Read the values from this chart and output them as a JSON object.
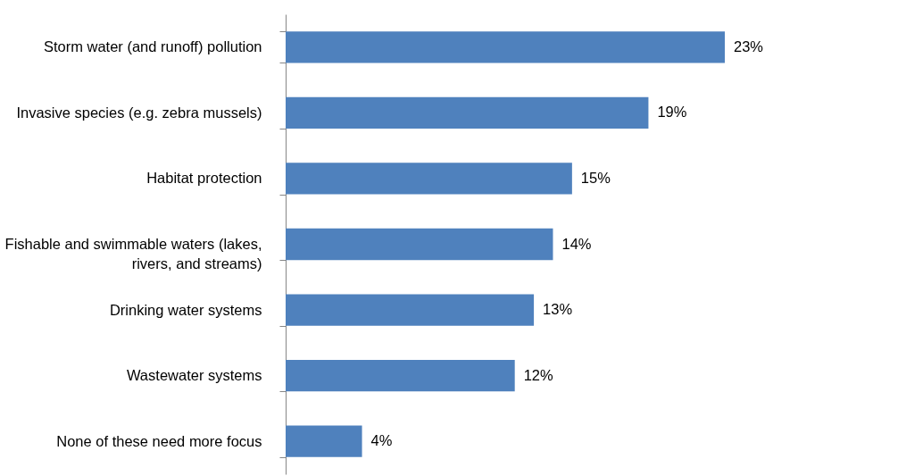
{
  "chart_data": {
    "type": "bar",
    "orientation": "horizontal",
    "categories": [
      "Storm water (and runoff) pollution",
      "Invasive species (e.g. zebra mussels)",
      "Habitat protection",
      "Fishable and swimmable waters (lakes, rivers, and streams)",
      "Drinking water systems",
      "Wastewater systems",
      "None of these need more focus"
    ],
    "values": [
      23,
      19,
      15,
      14,
      13,
      12,
      4
    ],
    "value_labels": [
      "23%",
      "19%",
      "15%",
      "14%",
      "13%",
      "12%",
      "4%"
    ],
    "color": "#4f81bd",
    "grid": false
  }
}
